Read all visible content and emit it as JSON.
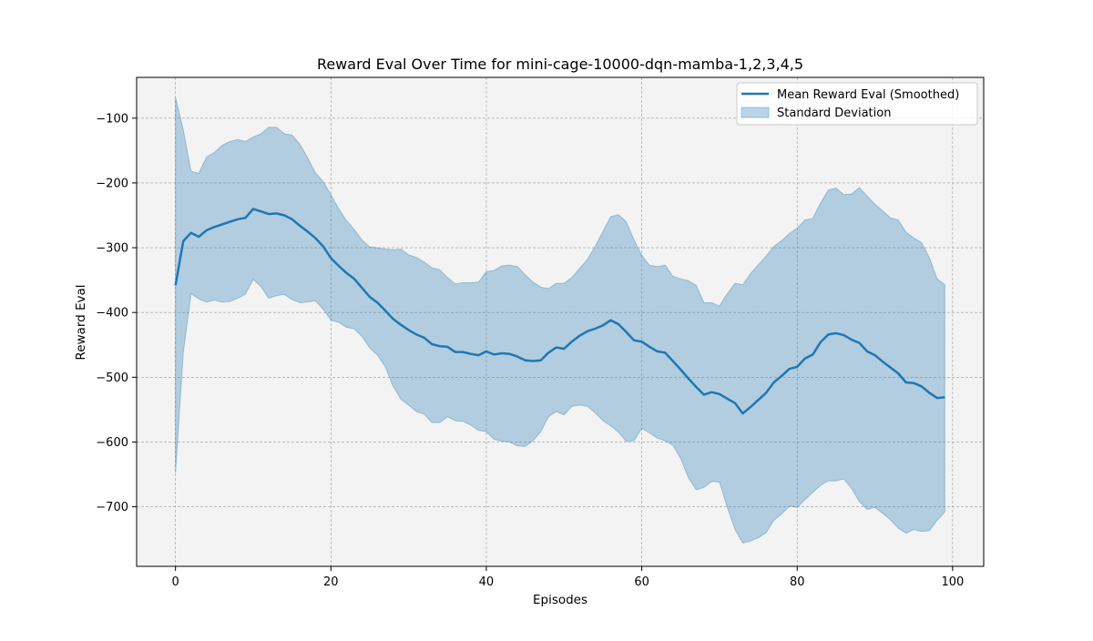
{
  "chart_data": {
    "type": "line",
    "title": "Reward Eval Over Time for mini-cage-10000-dqn-mamba-1,2,3,4,5",
    "xlabel": "Episodes",
    "ylabel": "Reward Eval",
    "xlim": [
      -5,
      104
    ],
    "ylim": [
      -792,
      -37
    ],
    "xticks": [
      0,
      20,
      40,
      60,
      80,
      100
    ],
    "yticks": [
      -700,
      -600,
      -500,
      -400,
      -300,
      -200,
      -100
    ],
    "grid": true,
    "legend_position": "top-right",
    "colors": {
      "line": "#1f77b4",
      "band": "#b3cde0",
      "plot_bg": "#f3f3f3"
    },
    "legend": [
      {
        "label": "Mean Reward Eval (Smoothed)",
        "kind": "line"
      },
      {
        "label": "Standard Deviation",
        "kind": "band"
      }
    ],
    "series": [
      {
        "name": "Mean Reward Eval (Smoothed)",
        "x": [
          0,
          1,
          2,
          3,
          4,
          5,
          6,
          7,
          8,
          9,
          10,
          11,
          12,
          13,
          14,
          15,
          16,
          17,
          18,
          19,
          20,
          21,
          22,
          23,
          24,
          25,
          26,
          27,
          28,
          29,
          30,
          31,
          32,
          33,
          34,
          35,
          36,
          37,
          38,
          39,
          40,
          41,
          42,
          43,
          44,
          45,
          46,
          47,
          48,
          49,
          50,
          51,
          52,
          53,
          54,
          55,
          56,
          57,
          58,
          59,
          60,
          61,
          62,
          63,
          64,
          65,
          66,
          67,
          68,
          69,
          70,
          71,
          72,
          73,
          74,
          75,
          76,
          77,
          78,
          79,
          80,
          81,
          82,
          83,
          84,
          85,
          86,
          87,
          88,
          89,
          90,
          91,
          92,
          93,
          94,
          95,
          96,
          97,
          98,
          99
        ],
        "values": [
          -358,
          -290,
          -277,
          -283,
          -273,
          -268,
          -264,
          -260,
          -256,
          -254,
          -240,
          -244,
          -248,
          -247,
          -250,
          -256,
          -266,
          -275,
          -285,
          -298,
          -316,
          -328,
          -339,
          -348,
          -362,
          -376,
          -385,
          -397,
          -410,
          -419,
          -427,
          -434,
          -439,
          -449,
          -452,
          -453,
          -461,
          -461,
          -464,
          -466,
          -460,
          -465,
          -463,
          -464,
          -468,
          -474,
          -475,
          -474,
          -462,
          -454,
          -456,
          -445,
          -436,
          -429,
          -425,
          -420,
          -412,
          -418,
          -430,
          -443,
          -445,
          -453,
          -460,
          -462,
          -475,
          -488,
          -502,
          -515,
          -527,
          -523,
          -526,
          -533,
          -540,
          -556,
          -546,
          -535,
          -524,
          -508,
          -498,
          -487,
          -484,
          -471,
          -465,
          -446,
          -434,
          -432,
          -435,
          -442,
          -447,
          -460,
          -466,
          -476,
          -485,
          -494,
          -508,
          -509,
          -514,
          -524,
          -532,
          -531
        ]
      },
      {
        "name": "Standard Deviation",
        "x": [
          0,
          1,
          2,
          3,
          4,
          5,
          6,
          7,
          8,
          9,
          10,
          11,
          12,
          13,
          14,
          15,
          16,
          17,
          18,
          19,
          20,
          21,
          22,
          23,
          24,
          25,
          26,
          27,
          28,
          29,
          30,
          31,
          32,
          33,
          34,
          35,
          36,
          37,
          38,
          39,
          40,
          41,
          42,
          43,
          44,
          45,
          46,
          47,
          48,
          49,
          50,
          51,
          52,
          53,
          54,
          55,
          56,
          57,
          58,
          59,
          60,
          61,
          62,
          63,
          64,
          65,
          66,
          67,
          68,
          69,
          70,
          71,
          72,
          73,
          74,
          75,
          76,
          77,
          78,
          79,
          80,
          81,
          82,
          83,
          84,
          85,
          86,
          87,
          88,
          89,
          90,
          91,
          92,
          93,
          94,
          95,
          96,
          97,
          98,
          99
        ],
        "upper": [
          -68,
          -118,
          -182,
          -185,
          -160,
          -153,
          -142,
          -136,
          -133,
          -136,
          -129,
          -124,
          -114,
          -114,
          -124,
          -126,
          -140,
          -161,
          -184,
          -198,
          -218,
          -240,
          -258,
          -272,
          -288,
          -299,
          -300,
          -302,
          -303,
          -302,
          -311,
          -315,
          -322,
          -331,
          -334,
          -346,
          -356,
          -354,
          -354,
          -353,
          -337,
          -335,
          -328,
          -327,
          -329,
          -342,
          -353,
          -361,
          -363,
          -355,
          -355,
          -346,
          -332,
          -318,
          -298,
          -275,
          -252,
          -249,
          -260,
          -288,
          -312,
          -327,
          -329,
          -327,
          -344,
          -348,
          -351,
          -358,
          -385,
          -385,
          -390,
          -371,
          -355,
          -357,
          -340,
          -326,
          -313,
          -298,
          -289,
          -278,
          -270,
          -257,
          -255,
          -231,
          -211,
          -208,
          -218,
          -217,
          -207,
          -220,
          -233,
          -243,
          -254,
          -257,
          -276,
          -285,
          -292,
          -315,
          -348,
          -357
        ],
        "lower": [
          -648,
          -462,
          -371,
          -379,
          -384,
          -381,
          -384,
          -383,
          -378,
          -372,
          -349,
          -360,
          -378,
          -374,
          -372,
          -380,
          -385,
          -384,
          -382,
          -395,
          -412,
          -415,
          -423,
          -425,
          -437,
          -455,
          -466,
          -484,
          -514,
          -534,
          -543,
          -553,
          -557,
          -570,
          -570,
          -561,
          -567,
          -568,
          -574,
          -582,
          -584,
          -596,
          -599,
          -600,
          -606,
          -607,
          -598,
          -584,
          -561,
          -553,
          -558,
          -545,
          -543,
          -545,
          -555,
          -567,
          -575,
          -585,
          -599,
          -598,
          -579,
          -586,
          -594,
          -598,
          -605,
          -625,
          -655,
          -674,
          -670,
          -661,
          -662,
          -700,
          -735,
          -756,
          -753,
          -748,
          -740,
          -721,
          -711,
          -699,
          -701,
          -689,
          -678,
          -667,
          -660,
          -660,
          -657,
          -672,
          -692,
          -704,
          -701,
          -710,
          -720,
          -733,
          -741,
          -735,
          -738,
          -737,
          -721,
          -708
        ]
      }
    ]
  }
}
